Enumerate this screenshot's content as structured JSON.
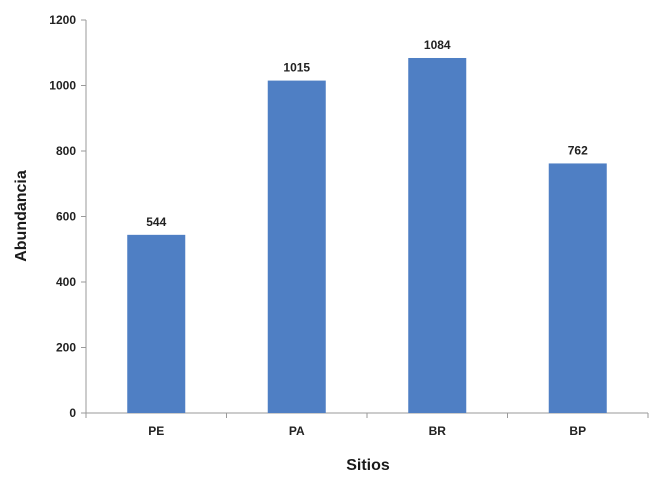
{
  "chart_data": {
    "type": "bar",
    "title": "",
    "xlabel": "Sitios",
    "ylabel": "Abundancia",
    "categories": [
      "PE",
      "PA",
      "BR",
      "BP"
    ],
    "values": [
      544,
      1015,
      1084,
      762
    ],
    "data_labels": [
      "544",
      "1015",
      "1084",
      "762"
    ],
    "ylim": [
      0,
      1200
    ],
    "yticks": [
      0,
      200,
      400,
      600,
      800,
      1000,
      1200
    ],
    "ytick_labels": [
      "0",
      "200",
      "400",
      "600",
      "800",
      "1000",
      "1200"
    ],
    "grid": false,
    "legend": "none",
    "colors": {
      "bar": "#4f7fc4",
      "axis": "#9a9a9a",
      "text": "#222222"
    }
  }
}
